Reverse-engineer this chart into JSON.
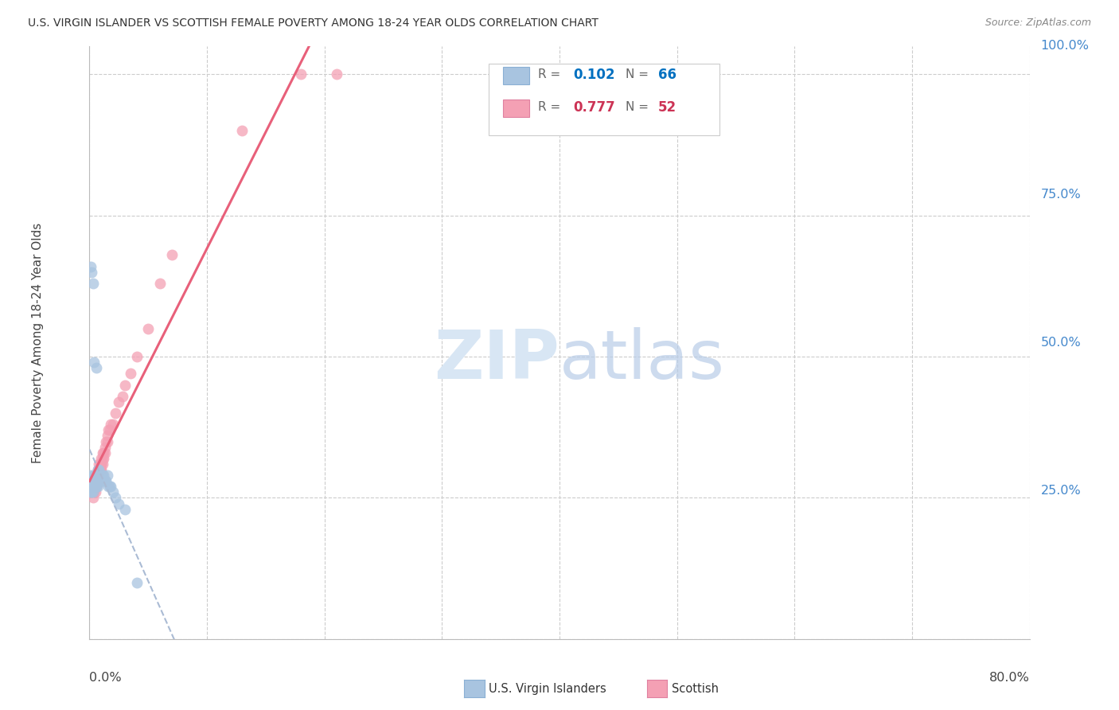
{
  "title": "U.S. VIRGIN ISLANDER VS SCOTTISH FEMALE POVERTY AMONG 18-24 YEAR OLDS CORRELATION CHART",
  "source": "Source: ZipAtlas.com",
  "ylabel": "Female Poverty Among 18-24 Year Olds",
  "r_vi": 0.102,
  "n_vi": 66,
  "r_sc": 0.777,
  "n_sc": 52,
  "color_vi": "#a8c4e0",
  "color_sc": "#f4a0b4",
  "color_vi_line": "#aabbd4",
  "color_sc_line": "#e8607a",
  "legend_vi_color": "#0070c0",
  "legend_sc_color": "#cc3355",
  "title_color": "#333333",
  "source_color": "#888888",
  "grid_color": "#cccccc",
  "right_label_color": "#4488cc",
  "figsize": [
    14.06,
    8.92
  ],
  "dpi": 100,
  "xlim": [
    0.0,
    0.8
  ],
  "ylim": [
    0.0,
    1.05
  ],
  "vi_x": [
    0.001,
    0.001,
    0.001,
    0.001,
    0.001,
    0.002,
    0.002,
    0.002,
    0.002,
    0.003,
    0.003,
    0.003,
    0.003,
    0.003,
    0.004,
    0.004,
    0.004,
    0.004,
    0.005,
    0.005,
    0.005,
    0.005,
    0.005,
    0.005,
    0.006,
    0.006,
    0.006,
    0.006,
    0.006,
    0.007,
    0.007,
    0.007,
    0.007,
    0.007,
    0.007,
    0.008,
    0.008,
    0.008,
    0.008,
    0.009,
    0.009,
    0.009,
    0.009,
    0.01,
    0.01,
    0.01,
    0.011,
    0.011,
    0.012,
    0.012,
    0.013,
    0.014,
    0.015,
    0.016,
    0.017,
    0.018,
    0.02,
    0.022,
    0.025,
    0.03,
    0.001,
    0.002,
    0.003,
    0.004,
    0.006,
    0.04
  ],
  "vi_y": [
    0.29,
    0.28,
    0.27,
    0.27,
    0.26,
    0.28,
    0.27,
    0.27,
    0.26,
    0.28,
    0.27,
    0.28,
    0.27,
    0.26,
    0.28,
    0.27,
    0.29,
    0.27,
    0.28,
    0.29,
    0.28,
    0.27,
    0.28,
    0.27,
    0.29,
    0.28,
    0.28,
    0.27,
    0.29,
    0.29,
    0.3,
    0.28,
    0.28,
    0.27,
    0.29,
    0.29,
    0.28,
    0.3,
    0.28,
    0.29,
    0.29,
    0.28,
    0.28,
    0.29,
    0.28,
    0.29,
    0.29,
    0.28,
    0.29,
    0.28,
    0.28,
    0.28,
    0.29,
    0.27,
    0.27,
    0.27,
    0.26,
    0.25,
    0.24,
    0.23,
    0.66,
    0.65,
    0.63,
    0.49,
    0.48,
    0.1
  ],
  "sc_x": [
    0.003,
    0.004,
    0.005,
    0.005,
    0.005,
    0.005,
    0.006,
    0.006,
    0.006,
    0.006,
    0.006,
    0.007,
    0.007,
    0.007,
    0.007,
    0.007,
    0.008,
    0.008,
    0.008,
    0.009,
    0.009,
    0.009,
    0.01,
    0.01,
    0.01,
    0.01,
    0.011,
    0.011,
    0.011,
    0.012,
    0.012,
    0.013,
    0.013,
    0.014,
    0.015,
    0.015,
    0.016,
    0.017,
    0.018,
    0.02,
    0.022,
    0.025,
    0.028,
    0.03,
    0.035,
    0.04,
    0.05,
    0.06,
    0.07,
    0.13,
    0.18,
    0.21
  ],
  "sc_y": [
    0.25,
    0.26,
    0.27,
    0.27,
    0.26,
    0.28,
    0.28,
    0.27,
    0.28,
    0.27,
    0.29,
    0.28,
    0.3,
    0.29,
    0.29,
    0.28,
    0.3,
    0.29,
    0.31,
    0.3,
    0.31,
    0.3,
    0.31,
    0.32,
    0.3,
    0.31,
    0.32,
    0.31,
    0.33,
    0.33,
    0.32,
    0.34,
    0.33,
    0.35,
    0.36,
    0.35,
    0.37,
    0.37,
    0.38,
    0.38,
    0.4,
    0.42,
    0.43,
    0.45,
    0.47,
    0.5,
    0.55,
    0.63,
    0.68,
    0.9,
    1.0,
    1.0
  ]
}
